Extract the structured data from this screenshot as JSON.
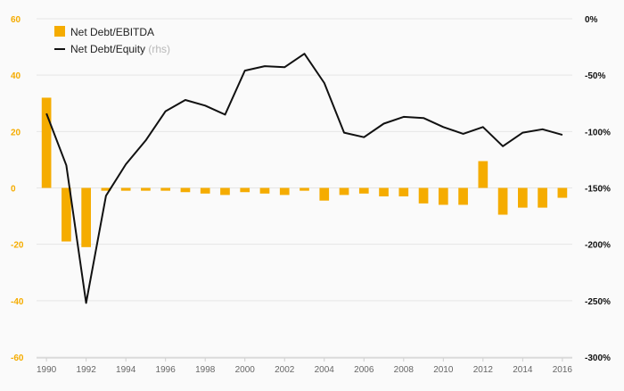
{
  "colors": {
    "background": "#fafafa",
    "bar": "#f5ac00",
    "line": "#111111",
    "left_axis_text": "#f5ac00",
    "right_axis_text": "#111111",
    "x_axis_text": "#666666",
    "grid": "#e6e6e6"
  },
  "chart_data": {
    "type": "bar",
    "title": "",
    "xlabel": "",
    "ylabel": "",
    "x": [
      1990,
      1991,
      1992,
      1993,
      1994,
      1995,
      1996,
      1997,
      1998,
      1999,
      2000,
      2001,
      2002,
      2003,
      2004,
      2005,
      2006,
      2007,
      2008,
      2009,
      2010,
      2011,
      2012,
      2013,
      2014,
      2015,
      2016
    ],
    "x_tick_labels": [
      "1990",
      "1992",
      "1994",
      "1996",
      "1998",
      "2000",
      "2002",
      "2004",
      "2006",
      "2008",
      "2010",
      "2012",
      "2014",
      "2016"
    ],
    "left_axis": {
      "ylim": [
        -60,
        60
      ],
      "ticks": [
        60,
        40,
        20,
        0,
        -20,
        -40,
        -60
      ],
      "tick_labels": [
        "60",
        "40",
        "20",
        "0",
        "-20",
        "-40",
        "-60"
      ],
      "grid": true
    },
    "right_axis": {
      "ylim": [
        -300,
        0
      ],
      "ticks": [
        0,
        -50,
        -100,
        -150,
        -200,
        -250,
        -300
      ],
      "tick_labels": [
        "0%",
        "-50%",
        "-100%",
        "-150%",
        "-200%",
        "-250%",
        "-300%"
      ]
    },
    "legend_position": "top-left",
    "series": [
      {
        "name": "Net Debt/EBITDA",
        "type": "bar",
        "axis": "left",
        "values": [
          32,
          -19,
          -21,
          -1,
          -1,
          -1,
          -1,
          -1.5,
          -2,
          -2.5,
          -1.5,
          -2,
          -2.5,
          -1,
          -4.5,
          -2.5,
          -2,
          -3,
          -3,
          -5.5,
          -6,
          -6,
          9.5,
          -9.5,
          -7,
          -7,
          -3.5
        ]
      },
      {
        "name": "Net Debt/Equity",
        "name_suffix": "(rhs)",
        "type": "line",
        "axis": "right",
        "values": [
          -84,
          -130,
          -252,
          -157,
          -129,
          -108,
          -82,
          -72,
          -77,
          -85,
          -46,
          -42,
          -43,
          -31,
          -57,
          -101,
          -105,
          -93,
          -87,
          -88,
          -96,
          -102,
          -96,
          -113,
          -101,
          -98,
          -103
        ]
      }
    ]
  }
}
